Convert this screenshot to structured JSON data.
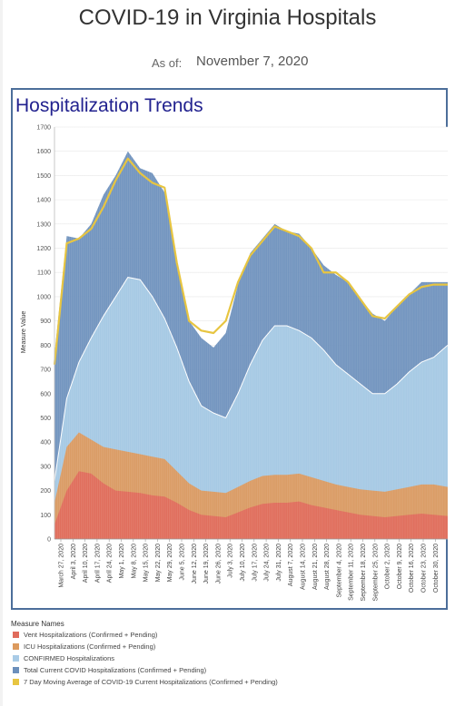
{
  "page": {
    "title": "COVID-19 in Virginia Hospitals",
    "as_of_label": "As of:",
    "as_of_date": "November 7, 2020"
  },
  "panel": {
    "title": "Hospitalization Trends"
  },
  "legend": {
    "title": "Measure Names",
    "items": [
      {
        "label": "Vent Hospitalizations (Confirmed + Pending)",
        "color": "#e06c5c"
      },
      {
        "label": "ICU Hospitalizations (Confirmed + Pending)",
        "color": "#dc9a5e"
      },
      {
        "label": "CONFIRMED Hospitalizations",
        "color": "#a9cbe6"
      },
      {
        "label": "Total Current COVID Hospitalizations (Confirmed + Pending)",
        "color": "#6b8fbc"
      },
      {
        "label": "7 Day Moving Average of COVID-19 Current Hospitalizations (Confirmed + Pending)",
        "color": "#e7c541"
      }
    ]
  },
  "chart_data": {
    "type": "area",
    "ylabel": "Measure Value",
    "ylim": [
      0,
      1700
    ],
    "yticks": [
      0,
      100,
      200,
      300,
      400,
      500,
      600,
      700,
      800,
      900,
      1000,
      1100,
      1200,
      1300,
      1400,
      1500,
      1600,
      1700
    ],
    "xlim": [
      "2020-03-27",
      "2020-11-07"
    ],
    "xtick_labels": [
      "March 27, 2020",
      "April 3, 2020",
      "April 10, 2020",
      "April 17, 2020",
      "April 24, 2020",
      "May 1, 2020",
      "May 8, 2020",
      "May 15, 2020",
      "May 22, 2020",
      "May 29, 2020",
      "June 5, 2020",
      "June 12, 2020",
      "June 19, 2020",
      "June 26, 2020",
      "July 3, 2020",
      "July 10, 2020",
      "July 17, 2020",
      "July 24, 2020",
      "July 31, 2020",
      "August 7, 2020",
      "August 14, 2020",
      "August 21, 2020",
      "August 28, 2020",
      "September 4, 2020",
      "September 11, 2020",
      "September 18, 2020",
      "September 25, 2020",
      "October 2, 2020",
      "October 9, 2020",
      "October 16, 2020",
      "October 23, 2020",
      "October 30, 2020"
    ],
    "series": [
      {
        "name": "Vent Hospitalizations (Confirmed + Pending)",
        "color": "#e06c5c",
        "x": [
          "2020-03-27",
          "2020-04-03",
          "2020-04-10",
          "2020-04-17",
          "2020-04-24",
          "2020-05-01",
          "2020-05-08",
          "2020-05-15",
          "2020-05-22",
          "2020-05-29",
          "2020-06-05",
          "2020-06-12",
          "2020-06-19",
          "2020-06-26",
          "2020-07-03",
          "2020-07-10",
          "2020-07-17",
          "2020-07-24",
          "2020-07-31",
          "2020-08-07",
          "2020-08-14",
          "2020-08-21",
          "2020-08-28",
          "2020-09-04",
          "2020-09-11",
          "2020-09-18",
          "2020-09-25",
          "2020-10-02",
          "2020-10-09",
          "2020-10-16",
          "2020-10-23",
          "2020-10-30",
          "2020-11-07"
        ],
        "values": [
          60,
          200,
          280,
          270,
          230,
          200,
          195,
          190,
          180,
          175,
          150,
          120,
          100,
          95,
          90,
          110,
          130,
          145,
          150,
          150,
          155,
          140,
          130,
          120,
          110,
          100,
          95,
          90,
          95,
          100,
          105,
          100,
          95
        ]
      },
      {
        "name": "ICU Hospitalizations (Confirmed + Pending)",
        "color": "#dc9a5e",
        "x": [
          "2020-03-27",
          "2020-04-03",
          "2020-04-10",
          "2020-04-17",
          "2020-04-24",
          "2020-05-01",
          "2020-05-08",
          "2020-05-15",
          "2020-05-22",
          "2020-05-29",
          "2020-06-05",
          "2020-06-12",
          "2020-06-19",
          "2020-06-26",
          "2020-07-03",
          "2020-07-10",
          "2020-07-17",
          "2020-07-24",
          "2020-07-31",
          "2020-08-07",
          "2020-08-14",
          "2020-08-21",
          "2020-08-28",
          "2020-09-04",
          "2020-09-11",
          "2020-09-18",
          "2020-09-25",
          "2020-10-02",
          "2020-10-09",
          "2020-10-16",
          "2020-10-23",
          "2020-10-30",
          "2020-11-07"
        ],
        "values": [
          150,
          380,
          440,
          410,
          380,
          370,
          360,
          350,
          340,
          330,
          280,
          230,
          200,
          195,
          190,
          215,
          240,
          260,
          265,
          265,
          270,
          255,
          240,
          225,
          215,
          205,
          200,
          195,
          205,
          215,
          225,
          225,
          215
        ]
      },
      {
        "name": "CONFIRMED Hospitalizations",
        "color": "#a9cbe6",
        "x": [
          "2020-03-27",
          "2020-04-03",
          "2020-04-10",
          "2020-04-17",
          "2020-04-24",
          "2020-05-01",
          "2020-05-08",
          "2020-05-15",
          "2020-05-22",
          "2020-05-29",
          "2020-06-05",
          "2020-06-12",
          "2020-06-19",
          "2020-06-26",
          "2020-07-03",
          "2020-07-10",
          "2020-07-17",
          "2020-07-24",
          "2020-07-31",
          "2020-08-07",
          "2020-08-14",
          "2020-08-21",
          "2020-08-28",
          "2020-09-04",
          "2020-09-11",
          "2020-09-18",
          "2020-09-25",
          "2020-10-02",
          "2020-10-09",
          "2020-10-16",
          "2020-10-23",
          "2020-10-30",
          "2020-11-07"
        ],
        "values": [
          240,
          580,
          730,
          830,
          920,
          1000,
          1080,
          1070,
          1000,
          910,
          790,
          650,
          550,
          520,
          500,
          600,
          720,
          820,
          880,
          880,
          860,
          830,
          780,
          720,
          680,
          640,
          600,
          600,
          640,
          690,
          730,
          750,
          800
        ]
      },
      {
        "name": "Total Current COVID Hospitalizations (Confirmed + Pending)",
        "color": "#6b8fbc",
        "x": [
          "2020-03-27",
          "2020-04-03",
          "2020-04-10",
          "2020-04-17",
          "2020-04-24",
          "2020-05-01",
          "2020-05-08",
          "2020-05-15",
          "2020-05-22",
          "2020-05-29",
          "2020-06-05",
          "2020-06-12",
          "2020-06-19",
          "2020-06-26",
          "2020-07-03",
          "2020-07-10",
          "2020-07-17",
          "2020-07-24",
          "2020-07-31",
          "2020-08-07",
          "2020-08-14",
          "2020-08-21",
          "2020-08-28",
          "2020-09-04",
          "2020-09-11",
          "2020-09-18",
          "2020-09-25",
          "2020-10-02",
          "2020-10-09",
          "2020-10-16",
          "2020-10-23",
          "2020-10-30",
          "2020-11-07"
        ],
        "values": [
          760,
          1250,
          1240,
          1300,
          1420,
          1500,
          1600,
          1530,
          1510,
          1430,
          1150,
          900,
          830,
          790,
          850,
          1050,
          1180,
          1240,
          1300,
          1270,
          1260,
          1200,
          1130,
          1090,
          1060,
          990,
          930,
          900,
          960,
          1010,
          1060,
          1060,
          1060
        ]
      },
      {
        "name": "7 Day Moving Average of COVID-19 Current Hospitalizations (Confirmed + Pending)",
        "color": "#e7c541",
        "x": [
          "2020-03-27",
          "2020-04-03",
          "2020-04-10",
          "2020-04-17",
          "2020-04-24",
          "2020-05-01",
          "2020-05-08",
          "2020-05-15",
          "2020-05-22",
          "2020-05-29",
          "2020-06-05",
          "2020-06-12",
          "2020-06-19",
          "2020-06-26",
          "2020-07-03",
          "2020-07-10",
          "2020-07-17",
          "2020-07-24",
          "2020-07-31",
          "2020-08-07",
          "2020-08-14",
          "2020-08-21",
          "2020-08-28",
          "2020-09-04",
          "2020-09-11",
          "2020-09-18",
          "2020-09-25",
          "2020-10-02",
          "2020-10-09",
          "2020-10-16",
          "2020-10-23",
          "2020-10-30",
          "2020-11-07"
        ],
        "values": [
          720,
          1220,
          1240,
          1280,
          1370,
          1480,
          1570,
          1510,
          1470,
          1450,
          1140,
          900,
          860,
          850,
          900,
          1060,
          1170,
          1230,
          1290,
          1270,
          1250,
          1200,
          1100,
          1100,
          1060,
          990,
          920,
          910,
          960,
          1010,
          1040,
          1050,
          1050
        ]
      }
    ]
  }
}
